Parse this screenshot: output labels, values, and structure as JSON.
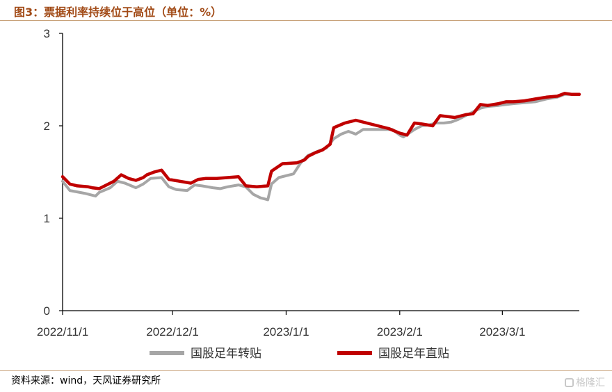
{
  "title": "图3：票据利率持续位于高位（单位：%）",
  "source": "资料来源：wind，天风证券研究所",
  "watermark": "格隆汇",
  "chart_data": {
    "type": "line",
    "title": "图3：票据利率持续位于高位（单位：%）",
    "xlabel": "",
    "ylabel": "",
    "ylim": [
      0,
      3
    ],
    "yticks": [
      0,
      1,
      2,
      3
    ],
    "xlim": [
      "2022-11-01",
      "2023-03-22"
    ],
    "xticks": [
      {
        "date": "2022-11-01",
        "label": "2022/11/1"
      },
      {
        "date": "2022-12-01",
        "label": "2022/12/1"
      },
      {
        "date": "2023-01-01",
        "label": "2023/1/1"
      },
      {
        "date": "2023-02-01",
        "label": "2023/2/1"
      },
      {
        "date": "2023-03-01",
        "label": "2023/3/1"
      }
    ],
    "grid": false,
    "legend_position": "bottom",
    "series": [
      {
        "name": "国股足年转贴",
        "color": "#a6a6a6",
        "points": [
          [
            "2022-11-01",
            1.4
          ],
          [
            "2022-11-03",
            1.3
          ],
          [
            "2022-11-07",
            1.27
          ],
          [
            "2022-11-10",
            1.24
          ],
          [
            "2022-11-11",
            1.28
          ],
          [
            "2022-11-14",
            1.33
          ],
          [
            "2022-11-16",
            1.4
          ],
          [
            "2022-11-18",
            1.38
          ],
          [
            "2022-11-21",
            1.33
          ],
          [
            "2022-11-23",
            1.37
          ],
          [
            "2022-11-25",
            1.43
          ],
          [
            "2022-11-28",
            1.44
          ],
          [
            "2022-11-30",
            1.34
          ],
          [
            "2022-12-02",
            1.31
          ],
          [
            "2022-12-05",
            1.3
          ],
          [
            "2022-12-07",
            1.36
          ],
          [
            "2022-12-09",
            1.35
          ],
          [
            "2022-12-12",
            1.33
          ],
          [
            "2022-12-14",
            1.32
          ],
          [
            "2022-12-16",
            1.34
          ],
          [
            "2022-12-19",
            1.36
          ],
          [
            "2022-12-21",
            1.34
          ],
          [
            "2022-12-23",
            1.26
          ],
          [
            "2022-12-25",
            1.22
          ],
          [
            "2022-12-27",
            1.2
          ],
          [
            "2022-12-28",
            1.37
          ],
          [
            "2022-12-30",
            1.44
          ],
          [
            "2023-01-03",
            1.48
          ],
          [
            "2023-01-05",
            1.6
          ],
          [
            "2023-01-07",
            1.68
          ],
          [
            "2023-01-10",
            1.73
          ],
          [
            "2023-01-12",
            1.76
          ],
          [
            "2023-01-14",
            1.86
          ],
          [
            "2023-01-16",
            1.91
          ],
          [
            "2023-01-18",
            1.94
          ],
          [
            "2023-01-20",
            1.91
          ],
          [
            "2023-01-22",
            1.96
          ],
          [
            "2023-01-26",
            1.96
          ],
          [
            "2023-01-30",
            1.96
          ],
          [
            "2023-02-01",
            1.9
          ],
          [
            "2023-02-02",
            1.88
          ],
          [
            "2023-02-05",
            1.96
          ],
          [
            "2023-02-07",
            2.0
          ],
          [
            "2023-02-09",
            2.01
          ],
          [
            "2023-02-11",
            2.03
          ],
          [
            "2023-02-13",
            2.03
          ],
          [
            "2023-02-15",
            2.04
          ],
          [
            "2023-02-17",
            2.07
          ],
          [
            "2023-02-19",
            2.11
          ],
          [
            "2023-02-21",
            2.15
          ],
          [
            "2023-02-23",
            2.19
          ],
          [
            "2023-02-25",
            2.21
          ],
          [
            "2023-02-28",
            2.22
          ],
          [
            "2023-03-02",
            2.23
          ],
          [
            "2023-03-04",
            2.24
          ],
          [
            "2023-03-07",
            2.25
          ],
          [
            "2023-03-10",
            2.26
          ],
          [
            "2023-03-13",
            2.29
          ],
          [
            "2023-03-16",
            2.31
          ],
          [
            "2023-03-18",
            2.34
          ],
          [
            "2023-03-20",
            2.34
          ],
          [
            "2023-03-22",
            2.34
          ]
        ]
      },
      {
        "name": "国股足年直贴",
        "color": "#c00000",
        "points": [
          [
            "2022-11-01",
            1.45
          ],
          [
            "2022-11-03",
            1.37
          ],
          [
            "2022-11-05",
            1.35
          ],
          [
            "2022-11-08",
            1.34
          ],
          [
            "2022-11-09",
            1.33
          ],
          [
            "2022-11-11",
            1.32
          ],
          [
            "2022-11-13",
            1.36
          ],
          [
            "2022-11-15",
            1.4
          ],
          [
            "2022-11-17",
            1.47
          ],
          [
            "2022-11-19",
            1.43
          ],
          [
            "2022-11-21",
            1.41
          ],
          [
            "2022-11-23",
            1.44
          ],
          [
            "2022-11-24",
            1.47
          ],
          [
            "2022-11-26",
            1.5
          ],
          [
            "2022-11-28",
            1.52
          ],
          [
            "2022-11-30",
            1.42
          ],
          [
            "2022-12-03",
            1.4
          ],
          [
            "2022-12-06",
            1.38
          ],
          [
            "2022-12-08",
            1.42
          ],
          [
            "2022-12-10",
            1.43
          ],
          [
            "2022-12-13",
            1.43
          ],
          [
            "2022-12-16",
            1.44
          ],
          [
            "2022-12-19",
            1.45
          ],
          [
            "2022-12-21",
            1.35
          ],
          [
            "2022-12-24",
            1.34
          ],
          [
            "2022-12-27",
            1.35
          ],
          [
            "2022-12-28",
            1.51
          ],
          [
            "2022-12-31",
            1.59
          ],
          [
            "2023-01-04",
            1.6
          ],
          [
            "2023-01-06",
            1.63
          ],
          [
            "2023-01-07",
            1.67
          ],
          [
            "2023-01-09",
            1.71
          ],
          [
            "2023-01-11",
            1.74
          ],
          [
            "2023-01-13",
            1.8
          ],
          [
            "2023-01-14",
            1.98
          ],
          [
            "2023-01-17",
            2.03
          ],
          [
            "2023-01-20",
            2.06
          ],
          [
            "2023-01-23",
            2.03
          ],
          [
            "2023-01-26",
            2.0
          ],
          [
            "2023-01-29",
            1.97
          ],
          [
            "2023-02-01",
            1.92
          ],
          [
            "2023-02-03",
            1.9
          ],
          [
            "2023-02-05",
            2.03
          ],
          [
            "2023-02-07",
            2.02
          ],
          [
            "2023-02-10",
            2.0
          ],
          [
            "2023-02-12",
            2.11
          ],
          [
            "2023-02-14",
            2.1
          ],
          [
            "2023-02-16",
            2.09
          ],
          [
            "2023-02-19",
            2.12
          ],
          [
            "2023-02-21",
            2.13
          ],
          [
            "2023-02-23",
            2.23
          ],
          [
            "2023-02-25",
            2.22
          ],
          [
            "2023-02-28",
            2.24
          ],
          [
            "2023-03-02",
            2.26
          ],
          [
            "2023-03-04",
            2.26
          ],
          [
            "2023-03-07",
            2.27
          ],
          [
            "2023-03-10",
            2.29
          ],
          [
            "2023-03-13",
            2.31
          ],
          [
            "2023-03-16",
            2.32
          ],
          [
            "2023-03-18",
            2.35
          ],
          [
            "2023-03-20",
            2.34
          ],
          [
            "2023-03-22",
            2.34
          ]
        ]
      }
    ]
  }
}
